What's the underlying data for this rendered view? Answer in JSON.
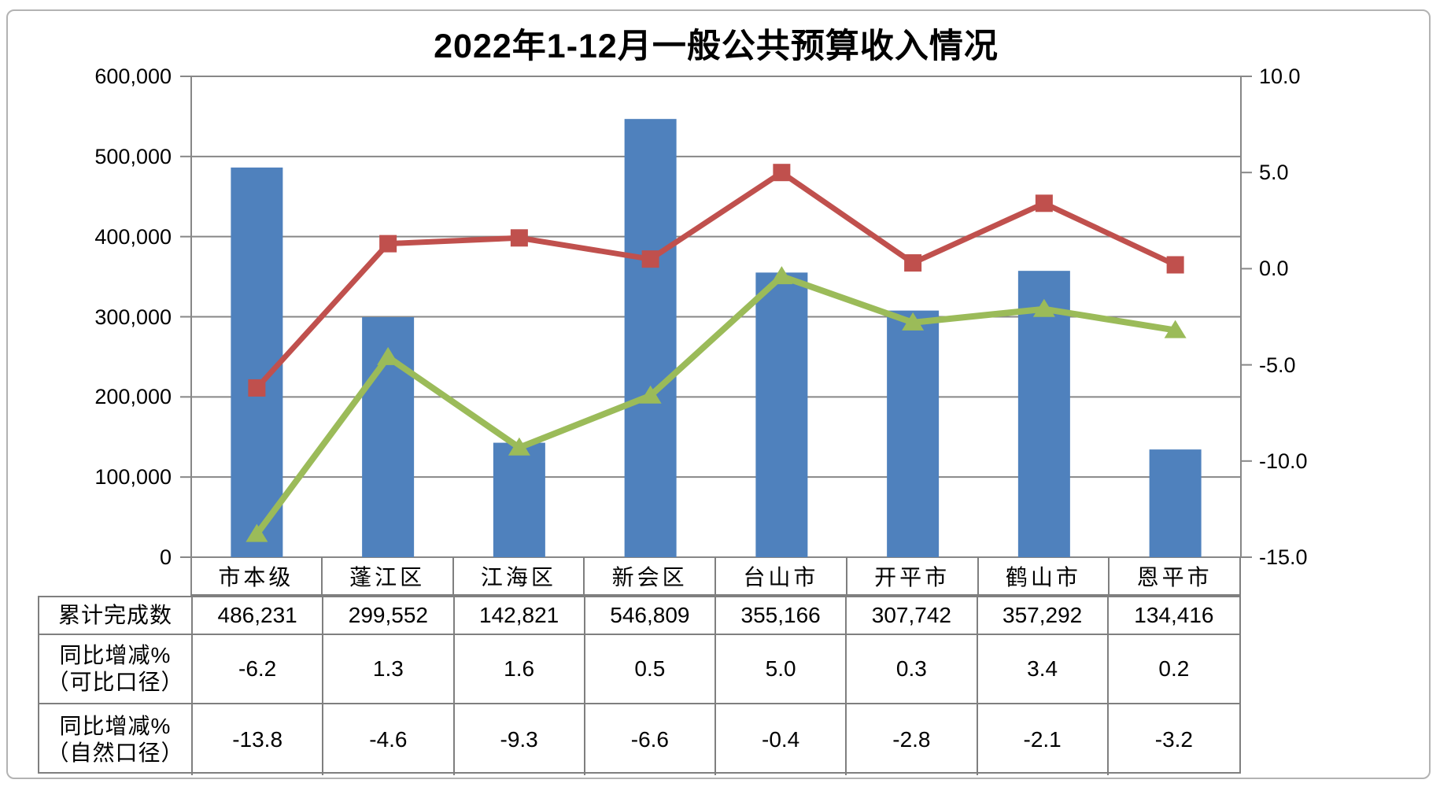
{
  "title": "2022年1-12月一般公共预算收入情况",
  "colors": {
    "bar": "#4F81BD",
    "line_comparable": "#C0504D",
    "line_natural": "#9BBB59",
    "gridline": "#878787",
    "table_border": "#7F7F7F"
  },
  "chart_data": {
    "type": "bar+line combo",
    "title": "2022年1-12月一般公共预算收入情况",
    "categories": [
      "市本级",
      "蓬江区",
      "江海区",
      "新会区",
      "台山市",
      "开平市",
      "鹤山市",
      "恩平市"
    ],
    "series": [
      {
        "name": "累计完成数",
        "type": "bar",
        "axis": "left",
        "color": "#4F81BD",
        "values": [
          486231,
          299552,
          142821,
          546809,
          355166,
          307742,
          357292,
          134416
        ]
      },
      {
        "name": "同比增减%（可比口径）",
        "type": "line",
        "marker": "square",
        "axis": "right",
        "color": "#C0504D",
        "values": [
          -6.2,
          1.3,
          1.6,
          0.5,
          5.0,
          0.3,
          3.4,
          0.2
        ]
      },
      {
        "name": "同比增减%（自然口径）",
        "type": "line",
        "marker": "triangle-up",
        "axis": "right",
        "color": "#9BBB59",
        "values": [
          -13.8,
          -4.6,
          -9.3,
          -6.6,
          -0.4,
          -2.8,
          -2.1,
          -3.2
        ]
      }
    ],
    "left_axis": {
      "min": 0,
      "max": 600000,
      "tick_labels": [
        "600,000",
        "500,000",
        "400,000",
        "300,000",
        "200,000",
        "100,000",
        "0"
      ]
    },
    "right_axis": {
      "min": -15.0,
      "max": 10.0,
      "tick_labels": [
        "10.0",
        "5.0",
        "0.0",
        "-5.0",
        "-10.0",
        "-15.0"
      ]
    },
    "grid": true,
    "legend_position": "none (table below chart acts as legend)"
  },
  "table": {
    "rows": [
      {
        "label_lines": [
          "累计完成数"
        ],
        "values": [
          "486,231",
          "299,552",
          "142,821",
          "546,809",
          "355,166",
          "307,742",
          "357,292",
          "134,416"
        ]
      },
      {
        "label_lines": [
          "同比增减%",
          "（可比口径）"
        ],
        "values": [
          "-6.2",
          "1.3",
          "1.6",
          "0.5",
          "5.0",
          "0.3",
          "3.4",
          "0.2"
        ]
      },
      {
        "label_lines": [
          "同比增减%",
          "（自然口径）"
        ],
        "values": [
          "-13.8",
          "-4.6",
          "-9.3",
          "-6.6",
          "-0.4",
          "-2.8",
          "-2.1",
          "-3.2"
        ]
      }
    ]
  }
}
